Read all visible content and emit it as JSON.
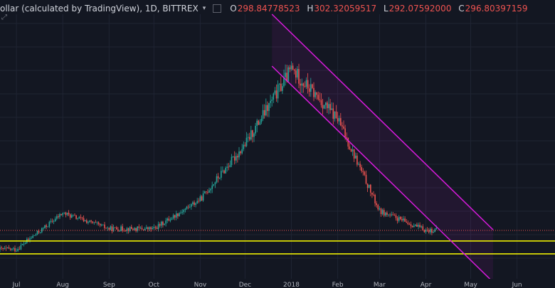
{
  "header": {
    "symbol": "ollar (calculated by TradingView), 1D, BITTREX",
    "caret": "▾",
    "open_key": "O",
    "open": "298.84778523",
    "high_key": "H",
    "high": "302.32059517",
    "low_key": "L",
    "low": "292.07592000",
    "close_key": "C",
    "close": "296.80397159"
  },
  "colors": {
    "background": "#131722",
    "grid": "#1f2433",
    "up": "#26a69a",
    "down": "#ef5350",
    "channel": "#d81bdc",
    "support": "#ffff00",
    "price_line": "#ef5350",
    "axis_text": "#b2b5be"
  },
  "x_axis": {
    "labels": [
      "Jul",
      "Aug",
      "Sep",
      "Oct",
      "Nov",
      "Dec",
      "2018",
      "Feb",
      "Mar",
      "Apr",
      "May",
      "Jun"
    ]
  },
  "icons": [
    "expand-icon",
    "square-icon",
    "caret-down-icon"
  ],
  "chart_data": {
    "type": "candlestick",
    "symbol_text": "ollar (calculated by TradingView), 1D, BITTREX",
    "x_labels": [
      "Jul",
      "Aug",
      "Sep",
      "Oct",
      "Nov",
      "Dec",
      "2018",
      "Feb",
      "Mar",
      "Apr",
      "May",
      "Jun"
    ],
    "last_ohlc": {
      "open": 298.84778523,
      "high": 302.32059517,
      "low": 292.07592,
      "close": 296.80397159
    },
    "y_range": [
      50,
      1400
    ],
    "price_line": 296.8,
    "support_lines": [
      243,
      177
    ],
    "channel": {
      "upper": [
        {
          "date": "2017-12-19",
          "value": 1400
        },
        {
          "date": "2018-05-16",
          "value": 300
        }
      ],
      "lower": [
        {
          "date": "2017-12-19",
          "value": 1135
        },
        {
          "date": "2018-05-16",
          "value": 33
        }
      ]
    },
    "monthly_closes": [
      {
        "month": "2017-07",
        "close": 200
      },
      {
        "month": "2017-08",
        "close": 385
      },
      {
        "month": "2017-09",
        "close": 305
      },
      {
        "month": "2017-10",
        "close": 305
      },
      {
        "month": "2017-11",
        "close": 455
      },
      {
        "month": "2017-12",
        "close": 735
      },
      {
        "month": "2018-01",
        "close": 1120
      },
      {
        "month": "2018-02",
        "close": 865
      },
      {
        "month": "2018-03",
        "close": 395
      },
      {
        "month": "2018-04",
        "close": 297
      }
    ]
  }
}
